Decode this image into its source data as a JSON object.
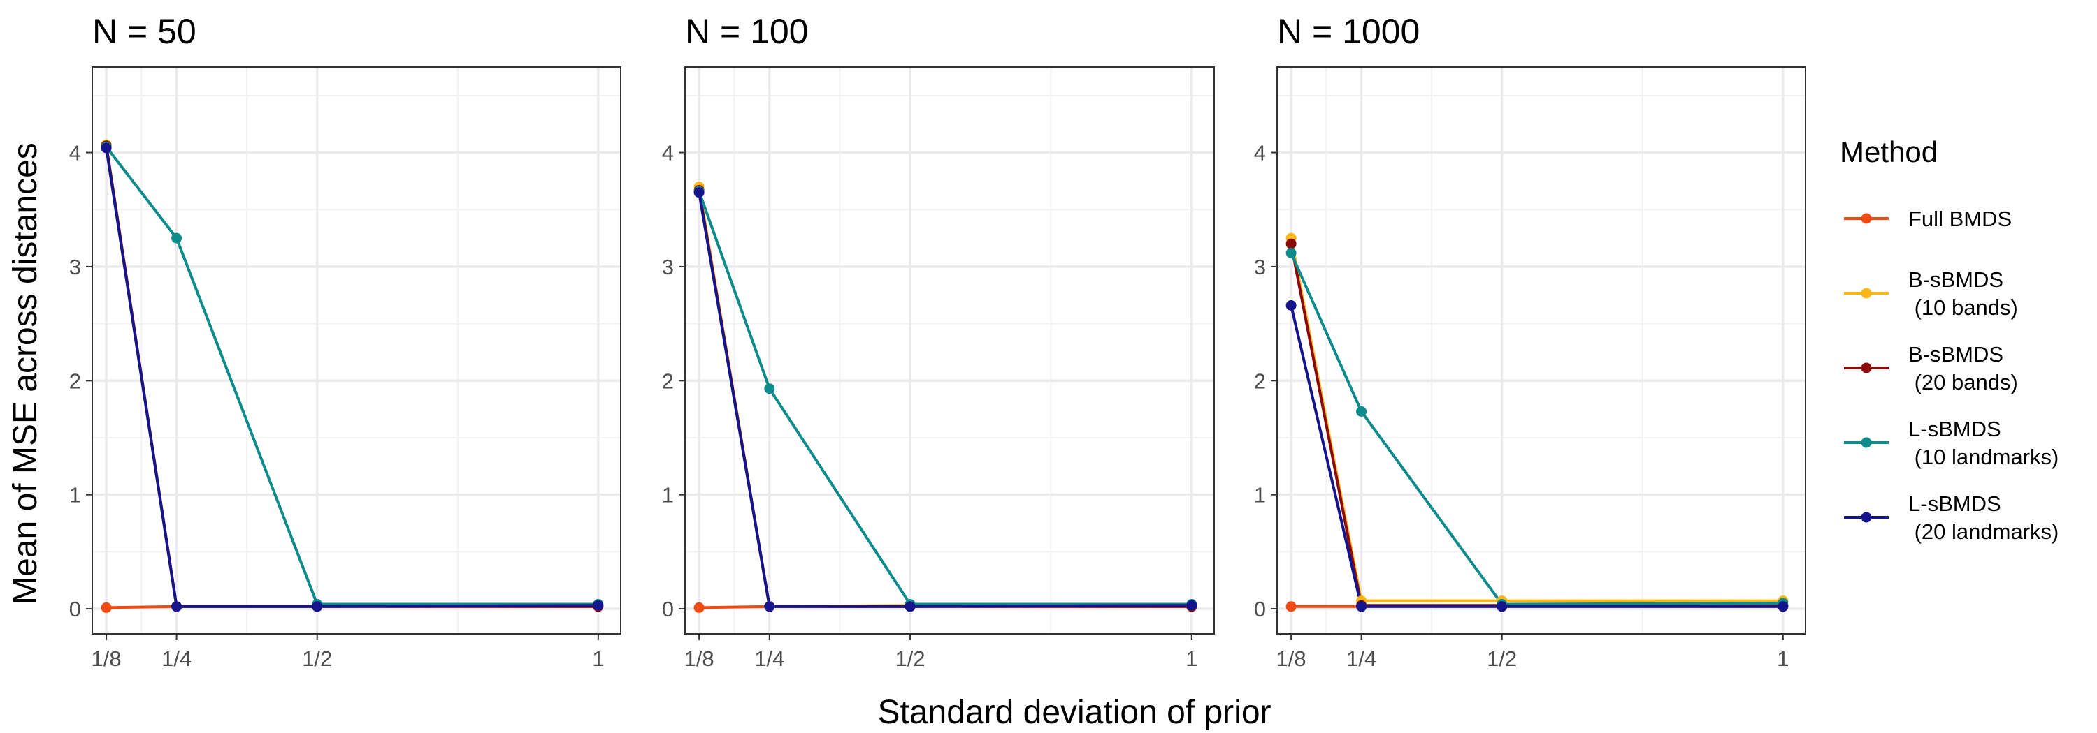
{
  "figure": {
    "xlabel": "Standard deviation of prior",
    "ylabel": "Mean of MSE across distances"
  },
  "legend": {
    "title": "Method",
    "placement": "right",
    "items": [
      {
        "lines": [
          "Full BMDS"
        ],
        "color": "#f04a12"
      },
      {
        "lines": [
          "B-sBMDS",
          " (10 bands)"
        ],
        "color": "#fbb715"
      },
      {
        "lines": [
          "B-sBMDS",
          " (20 bands)"
        ],
        "color": "#8b0a0a"
      },
      {
        "lines": [
          "L-sBMDS",
          " (10 landmarks)"
        ],
        "color": "#0e8c8c"
      },
      {
        "lines": [
          "L-sBMDS",
          " (20 landmarks)"
        ],
        "color": "#14148c"
      }
    ]
  },
  "chart_data": [
    {
      "type": "line",
      "title": "N = 50",
      "x": [
        0.125,
        0.25,
        0.5,
        1
      ],
      "x_tick_labels": [
        "1/8",
        "1/4",
        "1/2",
        "1"
      ],
      "xlim": [
        0.1,
        1.04
      ],
      "y_ticks": [
        0,
        1,
        2,
        3,
        4
      ],
      "ylim": [
        -0.22,
        4.75
      ],
      "grid": true,
      "series": [
        {
          "name": "Full BMDS",
          "color": "#f04a12",
          "values": [
            0.01,
            0.02,
            0.02,
            0.02
          ]
        },
        {
          "name": "B-sBMDS (10 bands)",
          "color": "#fbb715",
          "values": [
            4.07,
            0.02,
            0.02,
            0.03
          ]
        },
        {
          "name": "B-sBMDS (20 bands)",
          "color": "#8b0a0a",
          "values": [
            4.06,
            0.02,
            0.02,
            0.02
          ]
        },
        {
          "name": "L-sBMDS (10 landmarks)",
          "color": "#0e8c8c",
          "values": [
            4.05,
            3.25,
            0.04,
            0.04
          ]
        },
        {
          "name": "L-sBMDS (20 landmarks)",
          "color": "#14148c",
          "values": [
            4.04,
            0.02,
            0.02,
            0.03
          ]
        }
      ]
    },
    {
      "type": "line",
      "title": "N = 100",
      "x": [
        0.125,
        0.25,
        0.5,
        1
      ],
      "x_tick_labels": [
        "1/8",
        "1/4",
        "1/2",
        "1"
      ],
      "xlim": [
        0.1,
        1.04
      ],
      "y_ticks": [
        0,
        1,
        2,
        3,
        4
      ],
      "ylim": [
        -0.22,
        4.75
      ],
      "grid": true,
      "series": [
        {
          "name": "Full BMDS",
          "color": "#f04a12",
          "values": [
            0.01,
            0.02,
            0.02,
            0.02
          ]
        },
        {
          "name": "B-sBMDS (10 bands)",
          "color": "#fbb715",
          "values": [
            3.7,
            0.02,
            0.03,
            0.03
          ]
        },
        {
          "name": "B-sBMDS (20 bands)",
          "color": "#8b0a0a",
          "values": [
            3.67,
            0.02,
            0.02,
            0.02
          ]
        },
        {
          "name": "L-sBMDS (10 landmarks)",
          "color": "#0e8c8c",
          "values": [
            3.66,
            1.93,
            0.04,
            0.04
          ]
        },
        {
          "name": "L-sBMDS (20 landmarks)",
          "color": "#14148c",
          "values": [
            3.65,
            0.02,
            0.02,
            0.03
          ]
        }
      ]
    },
    {
      "type": "line",
      "title": "N = 1000",
      "x": [
        0.125,
        0.25,
        0.5,
        1
      ],
      "x_tick_labels": [
        "1/8",
        "1/4",
        "1/2",
        "1"
      ],
      "xlim": [
        0.1,
        1.04
      ],
      "y_ticks": [
        0,
        1,
        2,
        3,
        4
      ],
      "ylim": [
        -0.22,
        4.75
      ],
      "grid": true,
      "series": [
        {
          "name": "Full BMDS",
          "color": "#f04a12",
          "values": [
            0.02,
            0.02,
            0.02,
            0.02
          ]
        },
        {
          "name": "B-sBMDS (10 bands)",
          "color": "#fbb715",
          "values": [
            3.25,
            0.07,
            0.07,
            0.07
          ]
        },
        {
          "name": "B-sBMDS (20 bands)",
          "color": "#8b0a0a",
          "values": [
            3.2,
            0.03,
            0.03,
            0.03
          ]
        },
        {
          "name": "L-sBMDS (10 landmarks)",
          "color": "#0e8c8c",
          "values": [
            3.12,
            1.73,
            0.04,
            0.05
          ]
        },
        {
          "name": "L-sBMDS (20 landmarks)",
          "color": "#14148c",
          "values": [
            2.66,
            0.02,
            0.02,
            0.02
          ]
        }
      ]
    }
  ]
}
